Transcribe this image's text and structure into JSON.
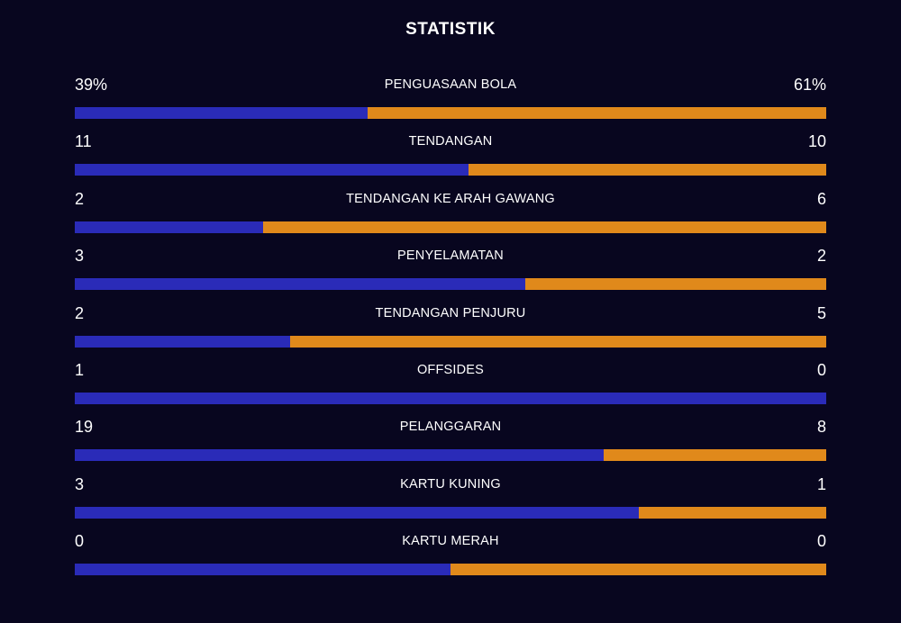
{
  "title": "STATISTIK",
  "colors": {
    "background": "#08061f",
    "home_bar": "#2a2bb8",
    "away_bar": "#e0891b",
    "text": "#ffffff"
  },
  "stats": [
    {
      "label": "PENGUASAAN BOLA",
      "home": "39%",
      "away": "61%",
      "home_share": 0.39
    },
    {
      "label": "TENDANGAN",
      "home": "11",
      "away": "10",
      "home_share": 0.524
    },
    {
      "label": "TENDANGAN KE ARAH GAWANG",
      "home": "2",
      "away": "6",
      "home_share": 0.25
    },
    {
      "label": "PENYELAMATAN",
      "home": "3",
      "away": "2",
      "home_share": 0.6
    },
    {
      "label": "TENDANGAN PENJURU",
      "home": "2",
      "away": "5",
      "home_share": 0.286
    },
    {
      "label": "OFFSIDES",
      "home": "1",
      "away": "0",
      "home_share": 1.0
    },
    {
      "label": "PELANGGARAN",
      "home": "19",
      "away": "8",
      "home_share": 0.704
    },
    {
      "label": "KARTU KUNING",
      "home": "3",
      "away": "1",
      "home_share": 0.75
    },
    {
      "label": "KARTU MERAH",
      "home": "0",
      "away": "0",
      "home_share": 0.5
    }
  ]
}
